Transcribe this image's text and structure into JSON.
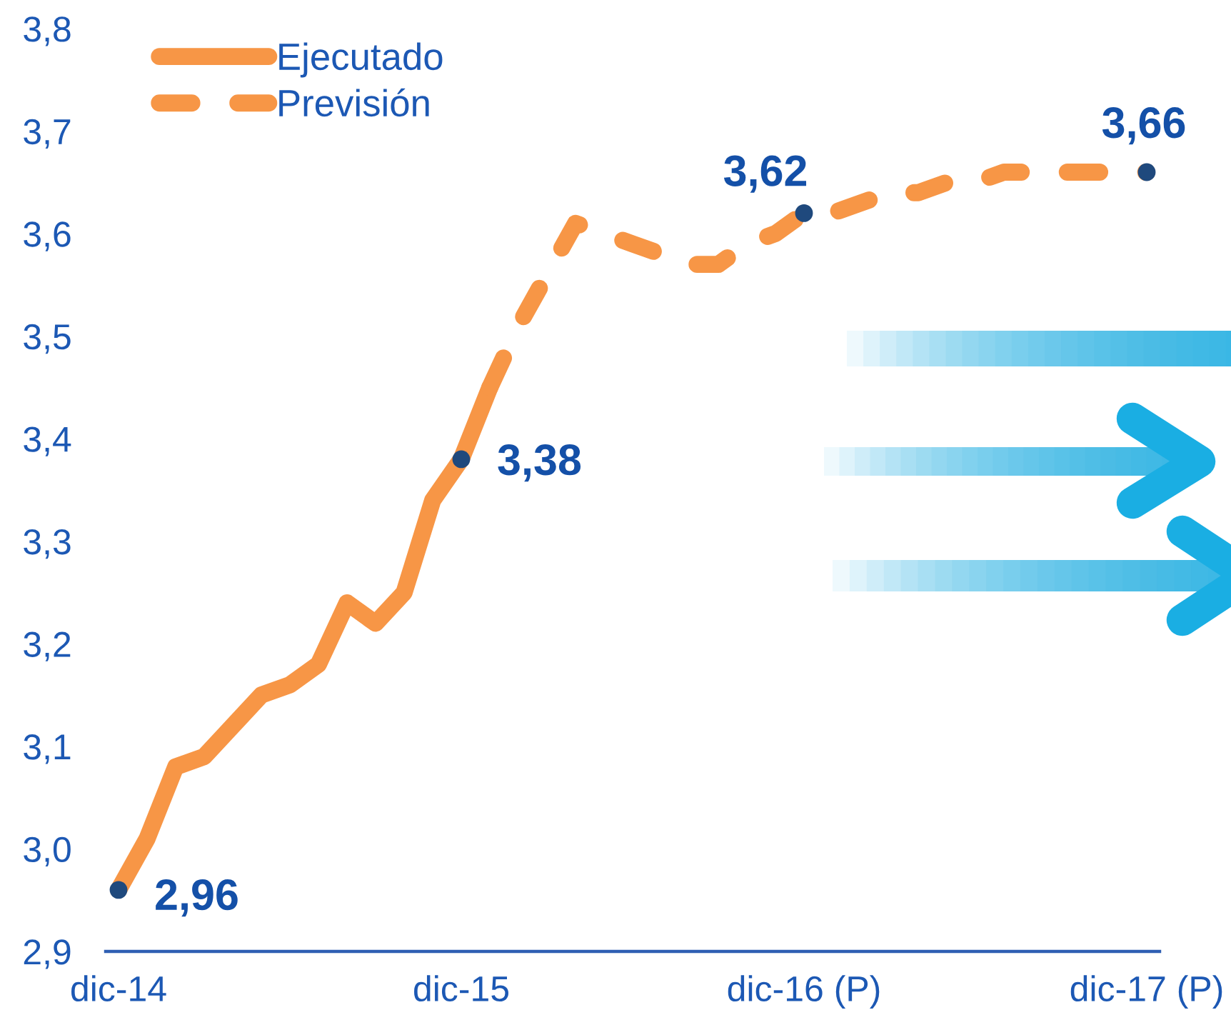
{
  "chart_data": {
    "type": "line",
    "categories": [
      "dic-14",
      null,
      null,
      null,
      null,
      null,
      null,
      null,
      null,
      null,
      null,
      null,
      "dic-15",
      null,
      null,
      null,
      null,
      null,
      null,
      null,
      null,
      null,
      null,
      null,
      "dic-16 (P)",
      null,
      null,
      null,
      null,
      null,
      null,
      null,
      null,
      null,
      null,
      null,
      "dic-17 (P)"
    ],
    "ylim": [
      2.9,
      3.8
    ],
    "yticks": [
      {
        "value": 2.9,
        "label": "2,9"
      },
      {
        "value": 3.0,
        "label": "3,0"
      },
      {
        "value": 3.1,
        "label": "3,1"
      },
      {
        "value": 3.2,
        "label": "3,2"
      },
      {
        "value": 3.3,
        "label": "3,3"
      },
      {
        "value": 3.4,
        "label": "3,4"
      },
      {
        "value": 3.5,
        "label": "3,5"
      },
      {
        "value": 3.6,
        "label": "3,6"
      },
      {
        "value": 3.7,
        "label": "3,7"
      },
      {
        "value": 3.8,
        "label": "3,8"
      }
    ],
    "legend": "top left",
    "series": [
      {
        "name": "Ejecutado",
        "line_style": "solid",
        "color": "#f79646",
        "values": [
          2.96,
          3.01,
          3.08,
          3.09,
          3.12,
          3.15,
          3.16,
          3.18,
          3.24,
          3.22,
          3.25,
          3.34,
          3.38,
          3.45,
          null,
          null,
          null,
          null,
          null,
          null,
          null,
          null,
          null,
          null,
          null,
          null,
          null,
          null,
          null,
          null,
          null,
          null,
          null,
          null,
          null,
          null,
          null
        ]
      },
      {
        "name": "Previsión",
        "line_style": "dashed",
        "color": "#f79646",
        "values": [
          null,
          null,
          null,
          null,
          null,
          null,
          null,
          null,
          null,
          null,
          null,
          null,
          null,
          3.45,
          3.51,
          3.56,
          3.61,
          3.6,
          3.59,
          3.58,
          3.57,
          3.57,
          3.59,
          3.6,
          3.62,
          3.62,
          3.63,
          3.64,
          3.64,
          3.65,
          3.65,
          3.66,
          3.66,
          3.66,
          3.66,
          3.66,
          3.66
        ]
      },
      {
        "type": "scatter",
        "color": "#1f497d",
        "values": [
          2.96,
          null,
          null,
          null,
          null,
          null,
          null,
          null,
          null,
          null,
          null,
          null,
          3.38,
          null,
          null,
          null,
          null,
          null,
          null,
          null,
          null,
          null,
          null,
          null,
          3.62,
          null,
          null,
          null,
          null,
          null,
          null,
          null,
          null,
          null,
          null,
          null,
          3.66
        ],
        "value_labels": [
          "2,96",
          null,
          null,
          null,
          null,
          null,
          null,
          null,
          null,
          null,
          null,
          null,
          "3,38",
          null,
          null,
          null,
          null,
          null,
          null,
          null,
          null,
          null,
          null,
          null,
          "3,62",
          null,
          null,
          null,
          null,
          null,
          null,
          null,
          null,
          null,
          null,
          null,
          "3,66"
        ]
      }
    ]
  }
}
